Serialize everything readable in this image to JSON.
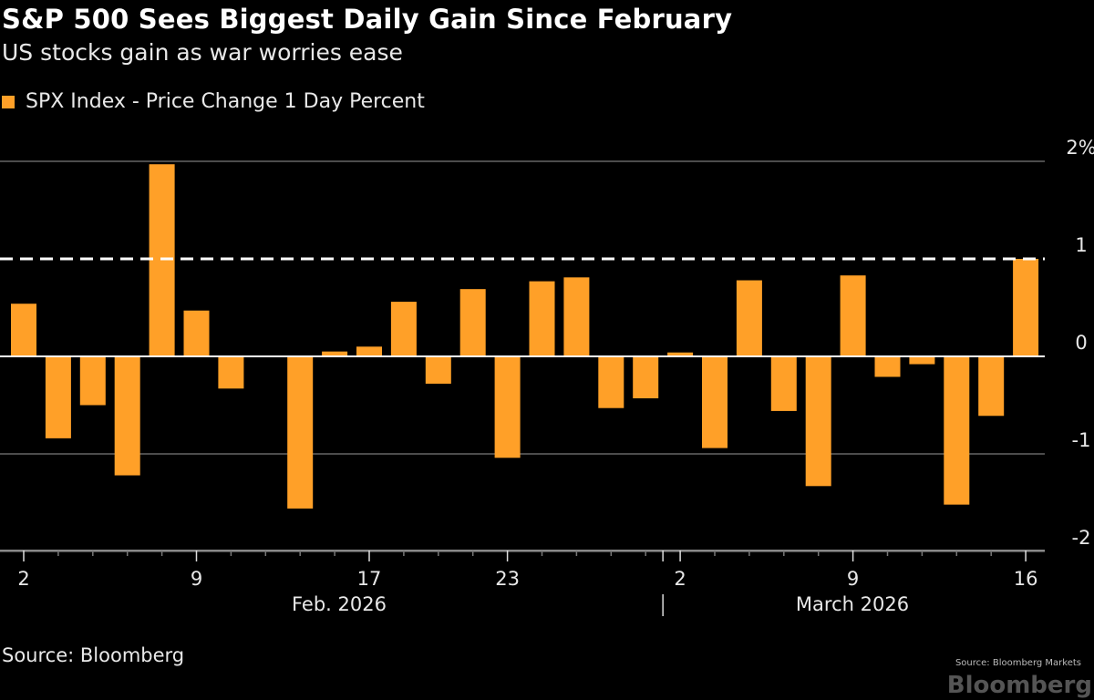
{
  "chart_data": {
    "type": "bar",
    "title": "S&P 500 Sees Biggest Daily Gain Since February",
    "subtitle": "US stocks gain as war worries ease",
    "legend": "top-left",
    "series": [
      {
        "name": "SPX Index - Price Change 1 Day Percent",
        "color": "#FFA028",
        "dates": [
          "2026-02-02",
          "2026-02-03",
          "2026-02-04",
          "2026-02-05",
          "2026-02-06",
          "2026-02-09",
          "2026-02-10",
          "2026-02-11",
          "2026-02-12",
          "2026-02-13",
          "2026-02-17",
          "2026-02-18",
          "2026-02-19",
          "2026-02-20",
          "2026-02-23",
          "2026-02-24",
          "2026-02-25",
          "2026-02-26",
          "2026-02-27",
          "2026-03-02",
          "2026-03-03",
          "2026-03-04",
          "2026-03-05",
          "2026-03-06",
          "2026-03-09",
          "2026-03-10",
          "2026-03-11",
          "2026-03-12",
          "2026-03-13",
          "2026-03-16"
        ],
        "values": [
          0.54,
          -0.84,
          -0.5,
          -1.22,
          1.97,
          0.47,
          -0.33,
          0.0,
          -1.56,
          0.05,
          0.1,
          0.56,
          -0.28,
          0.69,
          -1.04,
          0.77,
          0.81,
          -0.53,
          -0.43,
          0.04,
          -0.94,
          0.78,
          -0.56,
          -1.33,
          0.83,
          -0.21,
          -0.08,
          -1.52,
          -0.61,
          1.0
        ]
      }
    ],
    "reference_line": {
      "value": 1,
      "style": "dashed"
    },
    "ylim": [
      -2,
      2
    ],
    "y_ticks": [
      "2%",
      "1",
      "0",
      "-1",
      "-2"
    ],
    "y_tick_values": [
      2,
      1,
      0,
      -1,
      -2
    ],
    "x_tick_labels": [
      {
        "label": "2",
        "date": "2026-02-02"
      },
      {
        "label": "9",
        "date": "2026-02-09"
      },
      {
        "label": "17",
        "date": "2026-02-17"
      },
      {
        "label": "23",
        "date": "2026-02-23"
      },
      {
        "label": "2",
        "date": "2026-03-02"
      },
      {
        "label": "9",
        "date": "2026-03-09"
      },
      {
        "label": "16",
        "date": "2026-03-16"
      }
    ],
    "month_labels": [
      "Feb. 2026",
      "March 2026"
    ],
    "grid": true
  },
  "footer": {
    "source": "Source: Bloomberg",
    "watermark": "Source: Bloomberg Markets",
    "logo": "Bloomberg"
  }
}
